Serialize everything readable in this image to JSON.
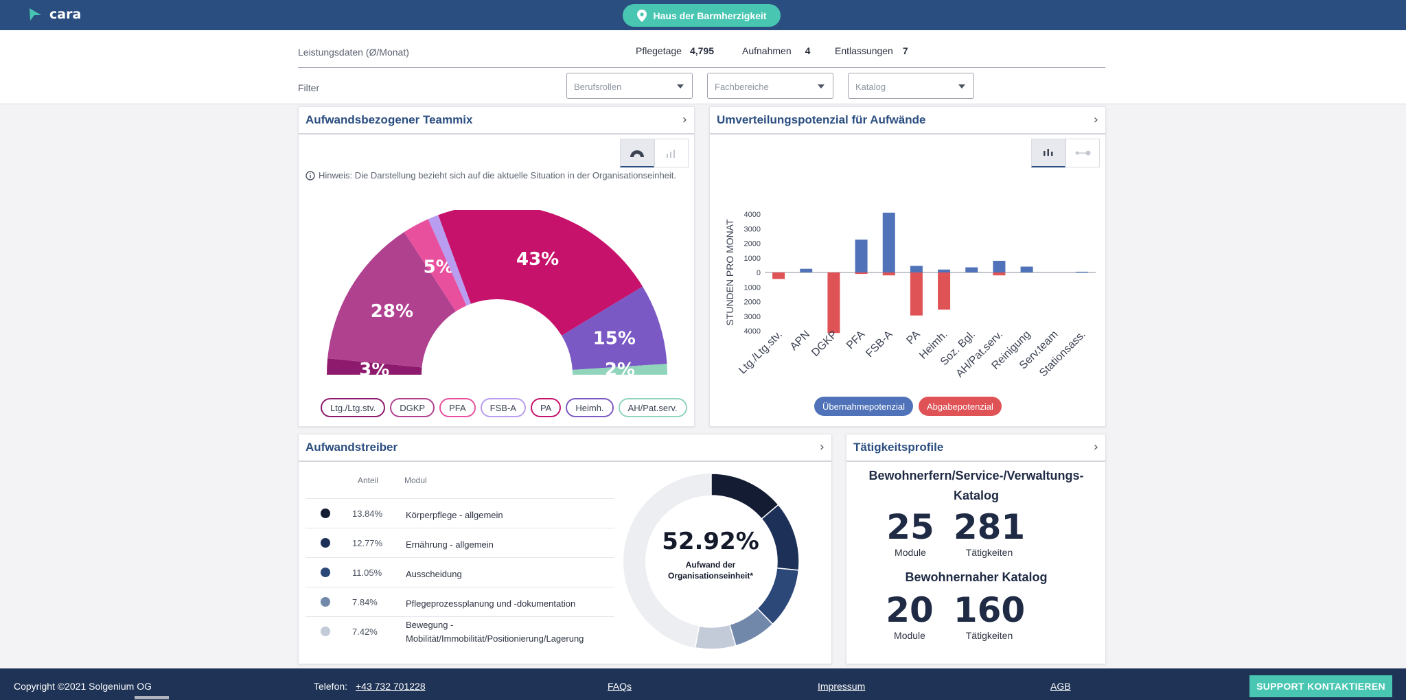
{
  "app": {
    "name": "cara"
  },
  "location": {
    "label": "Haus der Barmherzigkeit"
  },
  "leistungsdaten": {
    "title": "Leistungsdaten (Ø/Monat)",
    "stats": [
      {
        "label": "Pflegetage",
        "value": "4,795"
      },
      {
        "label": "Aufnahmen",
        "value": "4"
      },
      {
        "label": "Entlassungen",
        "value": "7"
      }
    ]
  },
  "filter": {
    "label": "Filter",
    "selects": [
      "Berufsrollen",
      "Fachbereiche",
      "Katalog"
    ]
  },
  "teammix": {
    "title": "Aufwandsbezogener Teammix",
    "hint": "Hinweis: Die Darstellung bezieht sich auf die aktuelle Situation in der Organisationseinheit.",
    "segments": [
      {
        "name": "Ltg./Ltg.stv.",
        "value": 3,
        "label": "3%",
        "color": "#8d1a6c"
      },
      {
        "name": "DGKP",
        "value": 28,
        "label": "28%",
        "color": "#b0418f"
      },
      {
        "name": "PFA",
        "value": 5,
        "label": "5%",
        "color": "#e8509e"
      },
      {
        "name": "FSB-A",
        "value": 2,
        "label": "",
        "color": "#b89df0"
      },
      {
        "name": "PA",
        "value": 43,
        "label": "43%",
        "color": "#c7126b"
      },
      {
        "name": "Heimh.",
        "value": 15,
        "label": "15%",
        "color": "#7a59c4"
      },
      {
        "name": "AH/Pat.serv.",
        "value": 2,
        "label": "2%",
        "color": "#8fd4bb"
      }
    ],
    "legend": [
      {
        "label": "Ltg./Ltg.stv.",
        "color": "#8d1a6c"
      },
      {
        "label": "DGKP",
        "color": "#b0418f"
      },
      {
        "label": "PFA",
        "color": "#e8509e"
      },
      {
        "label": "FSB-A",
        "color": "#b89df0"
      },
      {
        "label": "PA",
        "color": "#c7126b"
      },
      {
        "label": "Heimh.",
        "color": "#7a59c4"
      },
      {
        "label": "AH/Pat.serv.",
        "color": "#8fd4bb"
      }
    ]
  },
  "umverteilung": {
    "title": "Umverteilungspotenzial für Aufwände",
    "legend": [
      {
        "label": "Übernahmepotenzial",
        "color": "#4f72b8"
      },
      {
        "label": "Abgabepotenzial",
        "color": "#df5256"
      }
    ]
  },
  "chart_data": {
    "type": "bar",
    "ylabel": "STUNDEN PRO MONAT",
    "ylim": [
      -4000,
      4000
    ],
    "yticks": [
      4000,
      3000,
      2000,
      1000,
      0,
      1000,
      2000,
      3000,
      4000
    ],
    "categories": [
      "Ltg./Ltg.stv.",
      "APN",
      "DGKP",
      "PFA",
      "FSB-A",
      "PA",
      "Heimh.",
      "Soz. Bgl.",
      "AH/Pat.serv.",
      "Reinigung",
      "Serv.team",
      "Stationsass."
    ],
    "series": [
      {
        "name": "Übernahmepotenzial",
        "color": "#4f72b8",
        "values": [
          0,
          250,
          0,
          2250,
          4100,
          450,
          200,
          350,
          800,
          400,
          0,
          50
        ]
      },
      {
        "name": "Abgabepotenzial",
        "color": "#df5256",
        "values": [
          -450,
          0,
          -4150,
          -100,
          -200,
          -2950,
          -2550,
          0,
          -200,
          0,
          0,
          0
        ]
      }
    ],
    "grid": false
  },
  "aufwandstreiber": {
    "title": "Aufwandstreiber",
    "col_anteil": "Anteil",
    "col_modul": "Modul",
    "rows": [
      {
        "pct": "13.84%",
        "modul": "Körperpflege - allgemein",
        "color": "#141c33"
      },
      {
        "pct": "12.77%",
        "modul": "Ernährung - allgemein",
        "color": "#1d3057"
      },
      {
        "pct": "11.05%",
        "modul": "Ausscheidung",
        "color": "#2b4878"
      },
      {
        "pct": "7.84%",
        "modul": "Pflegeprozessplanung und -dokumentation",
        "color": "#7288ab"
      },
      {
        "pct": "7.42%",
        "modul": "Bewegung - Mobilität/Immobilität/Positionierung/Lagerung",
        "color": "#c3cad8"
      }
    ],
    "donut_value": "52.92%",
    "donut_label": "Aufwand der Organisationseinheit*",
    "donut_values": [
      13.84,
      12.77,
      11.05,
      7.84,
      7.42
    ],
    "donut_rest_color": "#eceef1"
  },
  "taetigkeitsprofile": {
    "title": "Tätigkeitsprofile",
    "catalogs": [
      {
        "title": "Bewohnerfern/Service-/Verwaltungs-Katalog",
        "modules": "25",
        "modules_label": "Module",
        "activities": "281",
        "activities_label": "Tätigkeiten"
      },
      {
        "title": "Bewohnernaher Katalog",
        "modules": "20",
        "modules_label": "Module",
        "activities": "160",
        "activities_label": "Tätigkeiten"
      }
    ]
  },
  "footer": {
    "copyright": "Copyright ©2021 Solgenium OG",
    "phone_label": "Telefon:",
    "phone": "+43 732 701228",
    "faqs": "FAQs",
    "impressum": "Impressum",
    "agb": "AGB",
    "support": "SUPPORT KONTAKTIEREN"
  },
  "colors": {
    "brand": "#2b4e80",
    "accent": "#48c6b2",
    "footer": "#1f3356"
  },
  "icons": [
    "cara-logo-icon",
    "location-pin-icon",
    "caret-down-icon",
    "chevron-right-icon",
    "semicircle-chart-icon",
    "bar-chart-icon",
    "dot-plot-icon",
    "info-icon"
  ]
}
